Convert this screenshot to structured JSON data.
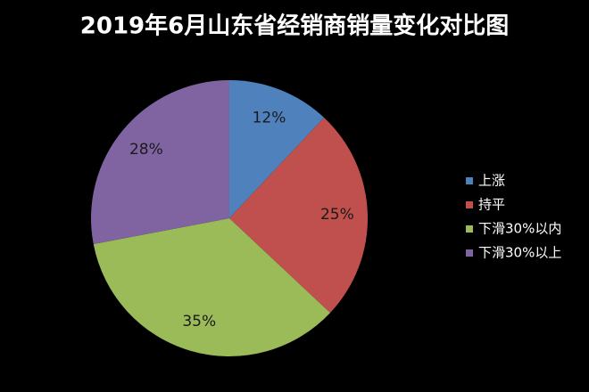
{
  "chart_data": {
    "type": "pie",
    "title": "2019年6月山东省经销商销量变化对比图",
    "categories": [
      "上涨",
      "持平",
      "下滑30%以内",
      "下滑30%以上"
    ],
    "values": [
      12,
      25,
      35,
      28
    ],
    "value_labels": [
      "12%",
      "25%",
      "35%",
      "28%"
    ],
    "colors": [
      "#4f81bd",
      "#c0504d",
      "#9bbb59",
      "#8064a2"
    ],
    "legend": "right"
  }
}
